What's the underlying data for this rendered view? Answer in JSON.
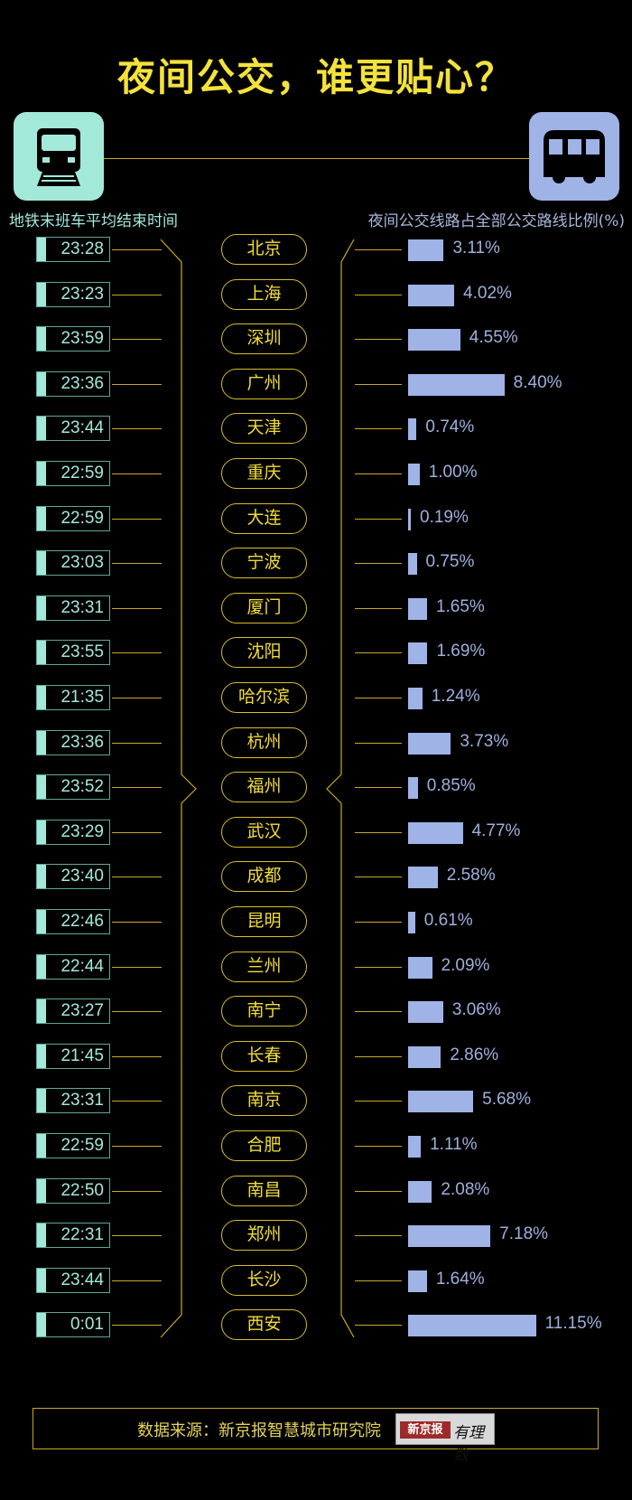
{
  "title": "夜间公交，谁更贴心？",
  "left_label": "地铁末班车平均结束时间",
  "right_label": "夜间公交线路占全部公交路线比例(%)",
  "icons": {
    "left": "metro-train-icon",
    "right": "bus-icon"
  },
  "colors": {
    "title": "#f4e23c",
    "metro": "#a3e9d9",
    "bus": "#9fb3e6",
    "line": "#c9a925"
  },
  "chart_data": {
    "type": "table",
    "title": "夜间公交，谁更贴心？",
    "columns": [
      "地铁末班车平均结束时间",
      "城市",
      "夜间公交线路占全部公交路线比例(%)"
    ],
    "rows": [
      {
        "city": "北京",
        "time": "23:28",
        "pct": 3.11,
        "pct_label": "3.11%"
      },
      {
        "city": "上海",
        "time": "23:23",
        "pct": 4.02,
        "pct_label": "4.02%"
      },
      {
        "city": "深圳",
        "time": "23:59",
        "pct": 4.55,
        "pct_label": "4.55%"
      },
      {
        "city": "广州",
        "time": "23:36",
        "pct": 8.4,
        "pct_label": "8.40%"
      },
      {
        "city": "天津",
        "time": "23:44",
        "pct": 0.74,
        "pct_label": "0.74%"
      },
      {
        "city": "重庆",
        "time": "22:59",
        "pct": 1.0,
        "pct_label": "1.00%"
      },
      {
        "city": "大连",
        "time": "22:59",
        "pct": 0.19,
        "pct_label": "0.19%"
      },
      {
        "city": "宁波",
        "time": "23:03",
        "pct": 0.75,
        "pct_label": "0.75%"
      },
      {
        "city": "厦门",
        "time": "23:31",
        "pct": 1.65,
        "pct_label": "1.65%"
      },
      {
        "city": "沈阳",
        "time": "23:55",
        "pct": 1.69,
        "pct_label": "1.69%"
      },
      {
        "city": "哈尔滨",
        "time": "21:35",
        "pct": 1.24,
        "pct_label": "1.24%"
      },
      {
        "city": "杭州",
        "time": "23:36",
        "pct": 3.73,
        "pct_label": "3.73%"
      },
      {
        "city": "福州",
        "time": "23:52",
        "pct": 0.85,
        "pct_label": "0.85%"
      },
      {
        "city": "武汉",
        "time": "23:29",
        "pct": 4.77,
        "pct_label": "4.77%"
      },
      {
        "city": "成都",
        "time": "23:40",
        "pct": 2.58,
        "pct_label": "2.58%"
      },
      {
        "city": "昆明",
        "time": "22:46",
        "pct": 0.61,
        "pct_label": "0.61%"
      },
      {
        "city": "兰州",
        "time": "22:44",
        "pct": 2.09,
        "pct_label": "2.09%"
      },
      {
        "city": "南宁",
        "time": "23:27",
        "pct": 3.06,
        "pct_label": "3.06%"
      },
      {
        "city": "长春",
        "time": "21:45",
        "pct": 2.86,
        "pct_label": "2.86%"
      },
      {
        "city": "南京",
        "time": "23:31",
        "pct": 5.68,
        "pct_label": "5.68%"
      },
      {
        "city": "合肥",
        "time": "22:59",
        "pct": 1.11,
        "pct_label": "1.11%"
      },
      {
        "city": "南昌",
        "time": "22:50",
        "pct": 2.08,
        "pct_label": "2.08%"
      },
      {
        "city": "郑州",
        "time": "22:31",
        "pct": 7.18,
        "pct_label": "7.18%"
      },
      {
        "city": "长沙",
        "time": "23:44",
        "pct": 1.64,
        "pct_label": "1.64%"
      },
      {
        "city": "西安",
        "time": "0:01",
        "pct": 11.15,
        "pct_label": "11.15%"
      }
    ]
  },
  "footer": {
    "source": "数据来源：新京报智慧城市研究院",
    "logo_text": "新京报",
    "logo_hand": "有理数"
  }
}
